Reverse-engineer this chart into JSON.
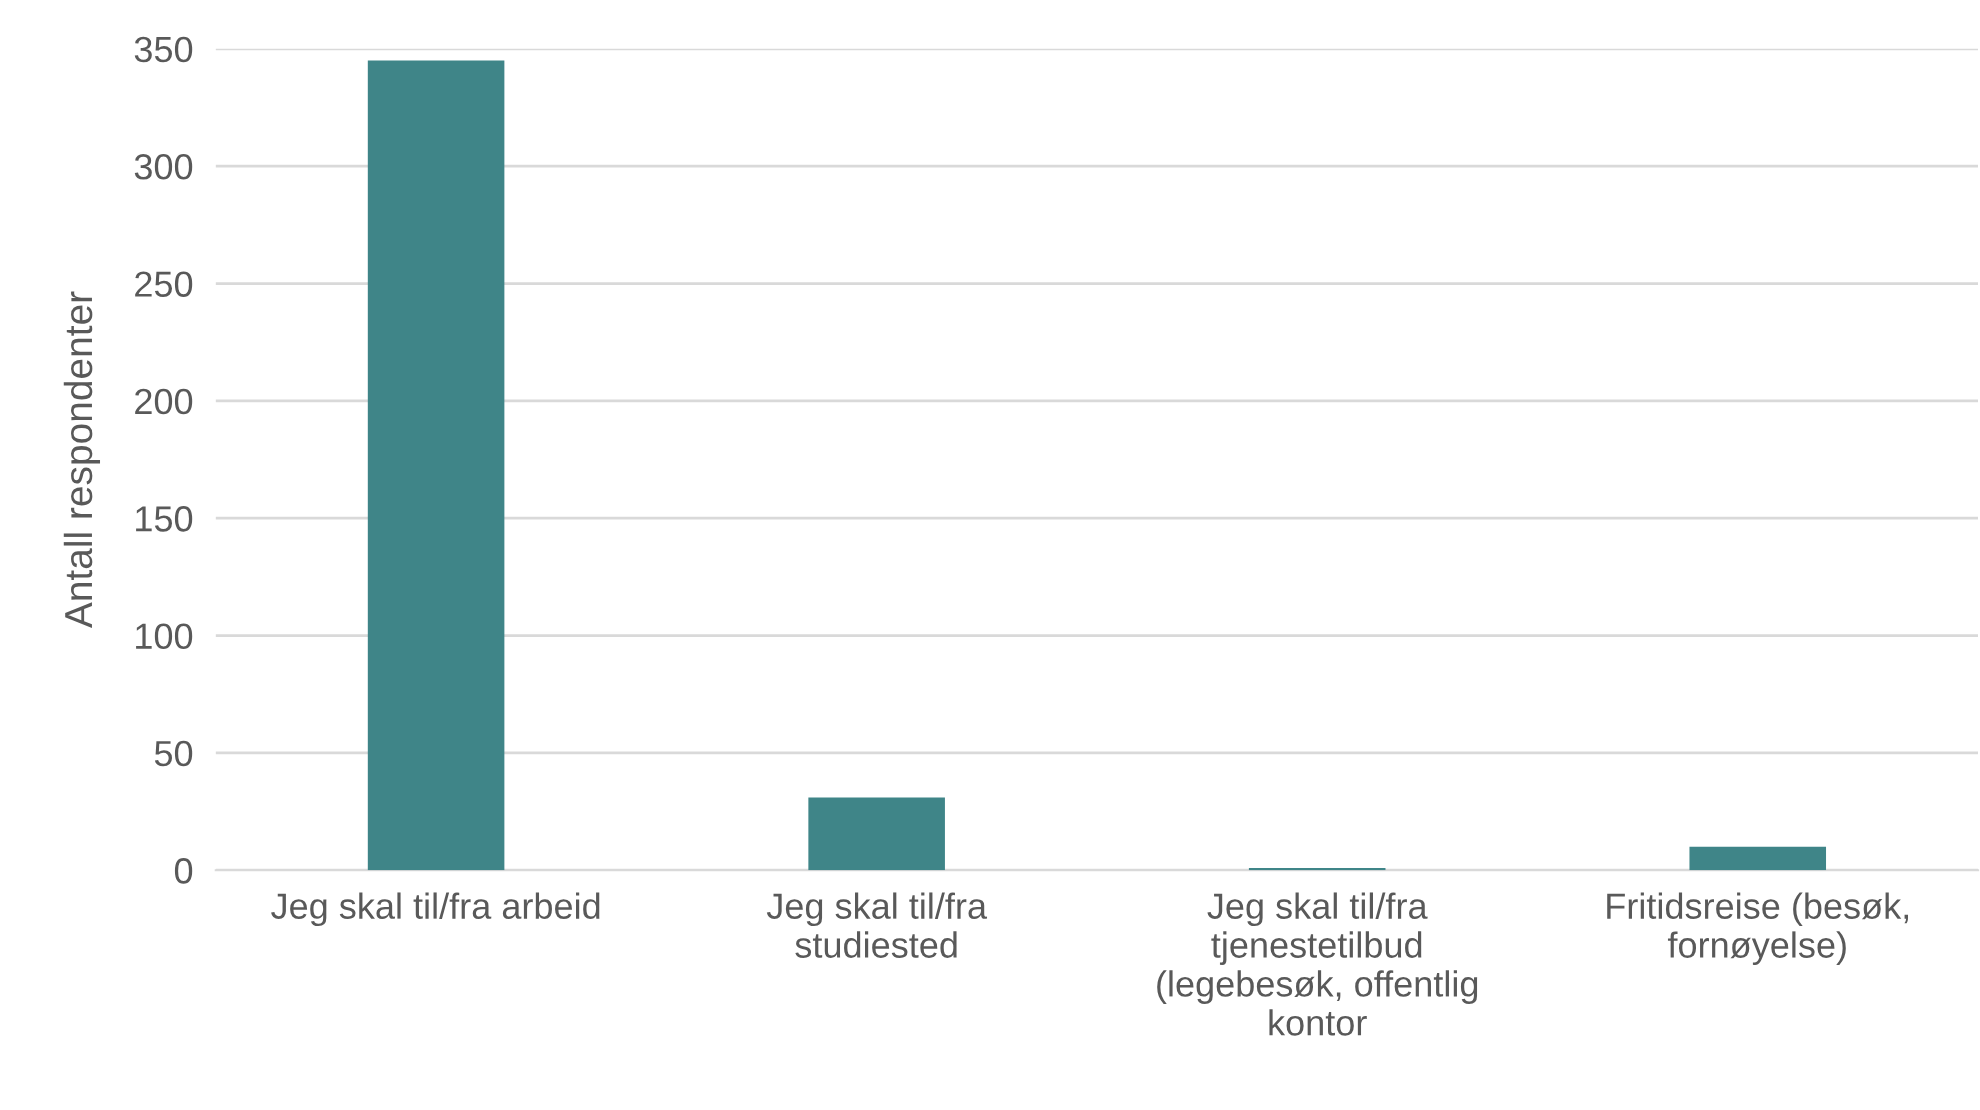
{
  "chart_data": {
    "type": "bar",
    "ylabel": "Antall respondenter",
    "categories": [
      "Jeg skal til/fra arbeid",
      "Jeg skal til/fra\nstudiested",
      "Jeg skal til/fra\ntjenestetilbud\n(legebesøk, offentlig\nkontor",
      "Fritidsreise (besøk,\nfornøyelse)"
    ],
    "values": [
      345,
      31,
      1,
      10
    ],
    "color": "#3f8588",
    "ylim": [
      0,
      350
    ],
    "yticks": [
      0,
      50,
      100,
      150,
      200,
      250,
      300,
      350
    ],
    "grid": "y"
  }
}
